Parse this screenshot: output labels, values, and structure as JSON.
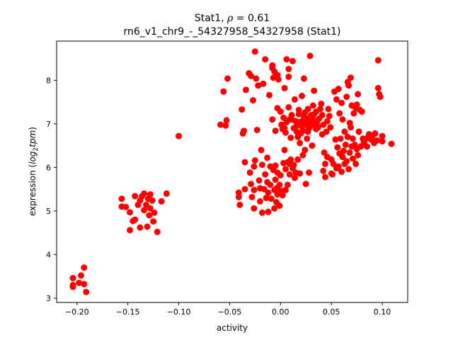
{
  "chart_data": {
    "type": "scatter",
    "title_line1_prefix": "Stat1, ",
    "title_rho_symbol": "ρ",
    "title_rho_value": " = 0.61",
    "title_line2": "rn6_v1_chr9_-_54327958_54327958 (Stat1)",
    "xlabel": "activity",
    "ylabel_prefix": "expression (",
    "ylabel_log": "log",
    "ylabel_sub": "2",
    "ylabel_tpm": "tpm",
    "ylabel_suffix": ")",
    "xlim": [
      -0.22,
      0.125
    ],
    "ylim": [
      2.9,
      8.9
    ],
    "x_ticks": [
      -0.2,
      -0.15,
      -0.1,
      -0.05,
      0.0,
      0.05,
      0.1
    ],
    "x_tick_labels": [
      "−0.20",
      "−0.15",
      "−0.10",
      "−0.05",
      "0.00",
      "0.05",
      "0.10"
    ],
    "y_ticks": [
      3,
      4,
      5,
      6,
      7,
      8
    ],
    "y_tick_labels": [
      "3",
      "4",
      "5",
      "6",
      "7",
      "8"
    ],
    "marker_color": "#ff0000",
    "grid": false,
    "series": [
      {
        "points": [
          [
            -0.204,
            3.46
          ],
          [
            -0.204,
            3.3
          ],
          [
            -0.204,
            3.26
          ],
          [
            -0.198,
            3.35
          ],
          [
            -0.196,
            3.52
          ],
          [
            -0.193,
            3.7
          ],
          [
            -0.193,
            3.32
          ],
          [
            -0.191,
            3.14
          ],
          [
            -0.156,
            5.28
          ],
          [
            -0.156,
            5.1
          ],
          [
            -0.152,
            5.09
          ],
          [
            -0.148,
            4.97
          ],
          [
            -0.148,
            4.56
          ],
          [
            -0.145,
            4.77
          ],
          [
            -0.143,
            5.34
          ],
          [
            -0.143,
            4.8
          ],
          [
            -0.14,
            5.14
          ],
          [
            -0.138,
            5.24
          ],
          [
            -0.138,
            4.62
          ],
          [
            -0.136,
            5.34
          ],
          [
            -0.134,
            5.4
          ],
          [
            -0.134,
            5.02
          ],
          [
            -0.132,
            5.14
          ],
          [
            -0.131,
            4.64
          ],
          [
            -0.13,
            5.28
          ],
          [
            -0.129,
            4.9
          ],
          [
            -0.128,
            5.06
          ],
          [
            -0.128,
            5.38
          ],
          [
            -0.126,
            5.24
          ],
          [
            -0.125,
            4.76
          ],
          [
            -0.124,
            4.96
          ],
          [
            -0.121,
            4.52
          ],
          [
            -0.117,
            5.22
          ],
          [
            -0.112,
            5.4
          ],
          [
            -0.1,
            6.72
          ],
          [
            -0.059,
            6.98
          ],
          [
            -0.056,
            7.74
          ],
          [
            -0.054,
            6.96
          ],
          [
            -0.053,
            7.08
          ],
          [
            -0.052,
            8.04
          ],
          [
            -0.041,
            5.42
          ],
          [
            -0.041,
            5.32
          ],
          [
            -0.04,
            5.14
          ],
          [
            -0.038,
            7.33
          ],
          [
            -0.037,
            6.78
          ],
          [
            -0.036,
            6.84
          ],
          [
            -0.035,
            5.5
          ],
          [
            -0.035,
            6.12
          ],
          [
            -0.034,
            7.78
          ],
          [
            -0.031,
            8.16
          ],
          [
            -0.03,
            5.88
          ],
          [
            -0.029,
            8.1
          ],
          [
            -0.029,
            5.62
          ],
          [
            -0.028,
            5.32
          ],
          [
            -0.027,
            7.54
          ],
          [
            -0.026,
            5.48
          ],
          [
            -0.026,
            5.06
          ],
          [
            -0.026,
            6.02
          ],
          [
            -0.025,
            6.16
          ],
          [
            -0.025,
            8.66
          ],
          [
            -0.024,
            8.04
          ],
          [
            -0.023,
            6.86
          ],
          [
            -0.022,
            7.88
          ],
          [
            -0.021,
            5.7
          ],
          [
            -0.02,
            5.22
          ],
          [
            -0.02,
            5.52
          ],
          [
            -0.019,
            6.4
          ],
          [
            -0.018,
            4.96
          ],
          [
            -0.018,
            6.06
          ],
          [
            -0.017,
            7.92
          ],
          [
            -0.016,
            5.5
          ],
          [
            -0.015,
            8.48
          ],
          [
            -0.015,
            5.84
          ],
          [
            -0.014,
            5.3
          ],
          [
            -0.013,
            5.66
          ],
          [
            -0.013,
            6.22
          ],
          [
            -0.012,
            4.98
          ],
          [
            -0.012,
            5.42
          ],
          [
            -0.011,
            7.66
          ],
          [
            -0.01,
            5.6
          ],
          [
            -0.01,
            6.02
          ],
          [
            -0.009,
            5.28
          ],
          [
            -0.008,
            8.28
          ],
          [
            -0.008,
            8.34
          ],
          [
            -0.008,
            7.1
          ],
          [
            -0.007,
            8.06
          ],
          [
            -0.007,
            5.94
          ],
          [
            -0.006,
            5.48
          ],
          [
            -0.006,
            5.06
          ],
          [
            -0.006,
            8.2
          ],
          [
            -0.005,
            6.84
          ],
          [
            -0.005,
            5.72
          ],
          [
            -0.005,
            6.04
          ],
          [
            -0.004,
            5.52
          ],
          [
            -0.004,
            5.2
          ],
          [
            -0.003,
            5.38
          ],
          [
            -0.003,
            5.88
          ],
          [
            -0.003,
            8.12
          ],
          [
            -0.003,
            7.36
          ],
          [
            -0.002,
            8.02
          ],
          [
            -0.001,
            5.6
          ],
          [
            -0.001,
            5.12
          ],
          [
            0.0,
            5.82
          ],
          [
            0.0,
            7.28
          ],
          [
            0.001,
            6.98
          ],
          [
            0.001,
            5.46
          ],
          [
            0.002,
            6.88
          ],
          [
            0.002,
            5.36
          ],
          [
            0.003,
            6.1
          ],
          [
            0.003,
            7.14
          ],
          [
            0.004,
            7.82
          ],
          [
            0.004,
            6.9
          ],
          [
            0.004,
            6.4
          ],
          [
            0.005,
            5.48
          ],
          [
            0.005,
            5.96
          ],
          [
            0.005,
            6.8
          ],
          [
            0.006,
            8.48
          ],
          [
            0.006,
            7.04
          ],
          [
            0.007,
            6.12
          ],
          [
            0.007,
            5.6
          ],
          [
            0.008,
            7.38
          ],
          [
            0.008,
            8.08
          ],
          [
            0.008,
            8.26
          ],
          [
            0.009,
            6.08
          ],
          [
            0.009,
            7.1
          ],
          [
            0.009,
            5.84
          ],
          [
            0.01,
            6.68
          ],
          [
            0.01,
            6.18
          ],
          [
            0.011,
            7.1
          ],
          [
            0.011,
            7.2
          ],
          [
            0.012,
            8.44
          ],
          [
            0.012,
            5.98
          ],
          [
            0.013,
            6.06
          ],
          [
            0.013,
            6.9
          ],
          [
            0.014,
            5.76
          ],
          [
            0.014,
            7.56
          ],
          [
            0.015,
            7.06
          ],
          [
            0.015,
            5.88
          ],
          [
            0.016,
            6.82
          ],
          [
            0.016,
            6.96
          ],
          [
            0.017,
            6.7
          ],
          [
            0.017,
            6.18
          ],
          [
            0.018,
            7.22
          ],
          [
            0.018,
            7.32
          ],
          [
            0.019,
            6.56
          ],
          [
            0.019,
            5.86
          ],
          [
            0.019,
            7.04
          ],
          [
            0.02,
            6.78
          ],
          [
            0.02,
            7.0
          ],
          [
            0.021,
            6.94
          ],
          [
            0.021,
            7.64
          ],
          [
            0.022,
            7.08
          ],
          [
            0.022,
            6.84
          ],
          [
            0.022,
            6.28
          ],
          [
            0.023,
            8.04
          ],
          [
            0.023,
            7.18
          ],
          [
            0.024,
            6.4
          ],
          [
            0.024,
            7.26
          ],
          [
            0.025,
            5.62
          ],
          [
            0.025,
            6.98
          ],
          [
            0.026,
            7.12
          ],
          [
            0.026,
            6.66
          ],
          [
            0.027,
            6.82
          ],
          [
            0.027,
            7.34
          ],
          [
            0.028,
            6.9
          ],
          [
            0.028,
            5.88
          ],
          [
            0.029,
            7.06
          ],
          [
            0.029,
            8.56
          ],
          [
            0.03,
            6.96
          ],
          [
            0.03,
            7.2
          ],
          [
            0.031,
            6.5
          ],
          [
            0.032,
            7.1
          ],
          [
            0.032,
            7.42
          ],
          [
            0.033,
            7.22
          ],
          [
            0.033,
            7.76
          ],
          [
            0.034,
            7.0
          ],
          [
            0.035,
            7.28
          ],
          [
            0.035,
            6.88
          ],
          [
            0.036,
            7.04
          ],
          [
            0.037,
            6.92
          ],
          [
            0.038,
            7.12
          ],
          [
            0.039,
            7.34
          ],
          [
            0.04,
            7.46
          ],
          [
            0.041,
            6.76
          ],
          [
            0.041,
            7.2
          ],
          [
            0.042,
            5.92
          ],
          [
            0.042,
            6.98
          ],
          [
            0.043,
            6.34
          ],
          [
            0.044,
            6.08
          ],
          [
            0.044,
            5.78
          ],
          [
            0.045,
            6.82
          ],
          [
            0.046,
            7.06
          ],
          [
            0.046,
            6.24
          ],
          [
            0.047,
            7.34
          ],
          [
            0.048,
            7.18
          ],
          [
            0.049,
            6.92
          ],
          [
            0.05,
            6.18
          ],
          [
            0.05,
            5.86
          ],
          [
            0.051,
            5.84
          ],
          [
            0.052,
            6.08
          ],
          [
            0.053,
            7.74
          ],
          [
            0.054,
            6.64
          ],
          [
            0.055,
            5.98
          ],
          [
            0.055,
            7.56
          ],
          [
            0.056,
            6.46
          ],
          [
            0.057,
            6.02
          ],
          [
            0.057,
            7.8
          ],
          [
            0.058,
            6.32
          ],
          [
            0.058,
            7.24
          ],
          [
            0.059,
            6.66
          ],
          [
            0.06,
            5.9
          ],
          [
            0.06,
            7.48
          ],
          [
            0.061,
            6.24
          ],
          [
            0.061,
            7.1
          ],
          [
            0.062,
            6.38
          ],
          [
            0.063,
            6.82
          ],
          [
            0.063,
            6.08
          ],
          [
            0.064,
            6.52
          ],
          [
            0.065,
            7.62
          ],
          [
            0.065,
            6.14
          ],
          [
            0.066,
            6.7
          ],
          [
            0.066,
            7.96
          ],
          [
            0.067,
            5.96
          ],
          [
            0.067,
            7.88
          ],
          [
            0.068,
            6.34
          ],
          [
            0.068,
            7.02
          ],
          [
            0.069,
            6.92
          ],
          [
            0.069,
            8.06
          ],
          [
            0.07,
            6.48
          ],
          [
            0.07,
            7.42
          ],
          [
            0.071,
            6.66
          ],
          [
            0.071,
            6.2
          ],
          [
            0.072,
            7.24
          ],
          [
            0.073,
            6.52
          ],
          [
            0.074,
            6.08
          ],
          [
            0.074,
            7.36
          ],
          [
            0.075,
            7.44
          ],
          [
            0.075,
            6.42
          ],
          [
            0.076,
            6.28
          ],
          [
            0.076,
            7.68
          ],
          [
            0.077,
            6.82
          ],
          [
            0.078,
            7.32
          ],
          [
            0.079,
            6.48
          ],
          [
            0.08,
            7.28
          ],
          [
            0.081,
            6.66
          ],
          [
            0.082,
            6.58
          ],
          [
            0.084,
            6.66
          ],
          [
            0.085,
            6.48
          ],
          [
            0.087,
            6.76
          ],
          [
            0.089,
            6.64
          ],
          [
            0.09,
            6.7
          ],
          [
            0.092,
            6.56
          ],
          [
            0.093,
            6.78
          ],
          [
            0.095,
            6.62
          ],
          [
            0.096,
            8.46
          ],
          [
            0.096,
            7.82
          ],
          [
            0.097,
            7.68
          ],
          [
            0.098,
            7.62
          ],
          [
            0.1,
            6.72
          ],
          [
            0.1,
            6.6
          ],
          [
            0.109,
            6.54
          ]
        ]
      }
    ]
  }
}
